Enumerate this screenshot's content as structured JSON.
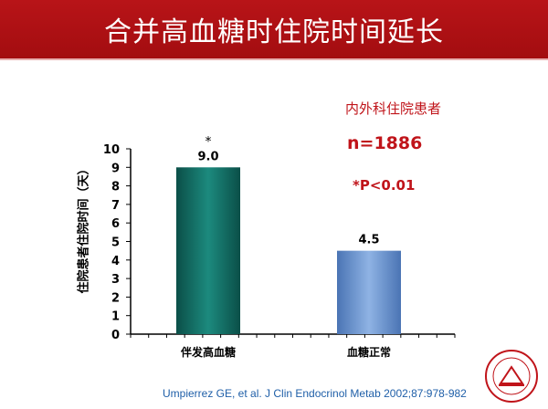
{
  "title": "合并高血糖时住院时间延长",
  "notes": {
    "department": "内外科住院患者",
    "sample": "n=1886",
    "pvalue": "*P<0.01"
  },
  "citation": "Umpierrez GE, et al. J Clin Endocrinol Metab 2002;87:978-982",
  "chart_data": {
    "type": "bar",
    "categories": [
      "伴发高血糖",
      "血糖正常"
    ],
    "values": [
      9.0,
      4.5
    ],
    "value_labels": [
      "9.0",
      "4.5"
    ],
    "annotations": [
      "*",
      ""
    ],
    "ylabel": "住院患者住院时间（天）",
    "xlabel": "",
    "ylim": [
      0,
      10
    ],
    "yticks": [
      0,
      1,
      2,
      3,
      4,
      5,
      6,
      7,
      8,
      9,
      10
    ],
    "grid": false,
    "legend": "none",
    "colors": [
      "#0f6b62",
      "#5a86c6"
    ]
  }
}
